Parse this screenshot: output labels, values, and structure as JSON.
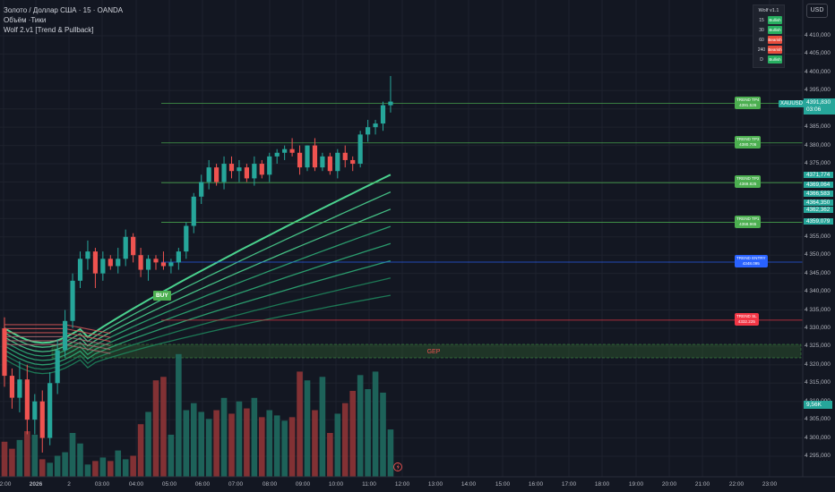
{
  "header": {
    "symbol_line": "Золото / Доллар США · 15 · OANDA",
    "volume_line": "Объём ·Тики",
    "indicator_line": "Wolf 2.v1 [Trend & Pullback]"
  },
  "currency_button": "USD",
  "wolf_panel": {
    "title": "Wolf v1.1",
    "rows": [
      {
        "tf": "15",
        "status": "Bullish",
        "color": "#27ae60"
      },
      {
        "tf": "30",
        "status": "Bullish",
        "color": "#27ae60"
      },
      {
        "tf": "60",
        "status": "Bearish",
        "color": "#e74c3c"
      },
      {
        "tf": "240",
        "status": "Bearish",
        "color": "#e74c3c"
      },
      {
        "tf": "D",
        "status": "Bullish",
        "color": "#27ae60"
      }
    ]
  },
  "levels": {
    "tp4": {
      "label": "TREND TP4",
      "value": "4391.526",
      "price": 4391.526
    },
    "tp3": {
      "label": "TREND TP3",
      "value": "4380.706",
      "price": 4380.706
    },
    "tp2": {
      "label": "TREND TP2",
      "value": "4369.825",
      "price": 4369.825
    },
    "tp1": {
      "label": "TREND TP1",
      "value": "4358.965",
      "price": 4358.965
    },
    "entry": {
      "label": "TREND ENTRY",
      "value": "4348.095",
      "price": 4348.095
    },
    "sl": {
      "label": "TREND SL",
      "value": "4332.225",
      "price": 4332.225
    }
  },
  "buy_label": "BUY",
  "gap_label": "GEP",
  "symbol_badge": "XAUUSD",
  "last_price": {
    "value": "4391,830",
    "countdown": "03:06"
  },
  "right_badges": [
    {
      "text": "4371,774",
      "price": 4371.774
    },
    {
      "text": "4369,064",
      "price": 4369.064
    },
    {
      "text": "4366,583",
      "price": 4366.583
    },
    {
      "text": "4364,350",
      "price": 4364.35
    },
    {
      "text": "4362,362",
      "price": 4362.362
    },
    {
      "text": "4359,079",
      "price": 4359.079
    }
  ],
  "volume_badge": "9,56K",
  "price_axis": [
    "4 410,000",
    "4 405,000",
    "4 400,000",
    "4 395,000",
    "4 385,000",
    "4 380,000",
    "4 375,000",
    "4 355,000",
    "4 350,000",
    "4 345,000",
    "4 340,000",
    "4 335,000",
    "4 330,000",
    "4 325,000",
    "4 320,000",
    "4 315,000",
    "4 310,000",
    "4 305,000",
    "4 300,000",
    "4 295,000"
  ],
  "time_axis": [
    "2:00",
    "2026",
    "2",
    "03:00",
    "04:00",
    "05:00",
    "06:00",
    "07:00",
    "08:00",
    "09:00",
    "10:00",
    "11:00",
    "12:00",
    "13:00",
    "14:00",
    "15:00",
    "16:00",
    "17:00",
    "18:00",
    "19:00",
    "20:00",
    "21:00",
    "22:00",
    "23:00"
  ],
  "colors": {
    "up": "#26a69a",
    "down": "#ef5350",
    "tp": "#4caf50",
    "entry": "#2962ff",
    "sl": "#f23645",
    "background": "#131722"
  },
  "chart_data": {
    "type": "candlestick",
    "symbol": "XAUUSD",
    "timeframe": "15",
    "candles": [
      {
        "o": 4330,
        "h": 4333,
        "l": 4314,
        "c": 4317
      },
      {
        "o": 4317,
        "h": 4319,
        "l": 4308,
        "c": 4311
      },
      {
        "o": 4311,
        "h": 4321,
        "l": 4307,
        "c": 4316
      },
      {
        "o": 4316,
        "h": 4320,
        "l": 4301,
        "c": 4305
      },
      {
        "o": 4305,
        "h": 4312,
        "l": 4301,
        "c": 4310
      },
      {
        "o": 4310,
        "h": 4313,
        "l": 4296,
        "c": 4300
      },
      {
        "o": 4300,
        "h": 4318,
        "l": 4298,
        "c": 4315
      },
      {
        "o": 4315,
        "h": 4327,
        "l": 4312,
        "c": 4324
      },
      {
        "o": 4324,
        "h": 4335,
        "l": 4322,
        "c": 4332
      },
      {
        "o": 4332,
        "h": 4345,
        "l": 4330,
        "c": 4343
      },
      {
        "o": 4343,
        "h": 4351,
        "l": 4341,
        "c": 4349
      },
      {
        "o": 4349,
        "h": 4354,
        "l": 4346,
        "c": 4351
      },
      {
        "o": 4351,
        "h": 4352,
        "l": 4341,
        "c": 4345
      },
      {
        "o": 4345,
        "h": 4351,
        "l": 4343,
        "c": 4349
      },
      {
        "o": 4349,
        "h": 4350,
        "l": 4346,
        "c": 4347
      },
      {
        "o": 4347,
        "h": 4352,
        "l": 4345,
        "c": 4349
      },
      {
        "o": 4349,
        "h": 4357,
        "l": 4347,
        "c": 4355
      },
      {
        "o": 4355,
        "h": 4356,
        "l": 4348,
        "c": 4350
      },
      {
        "o": 4350,
        "h": 4352,
        "l": 4344,
        "c": 4346
      },
      {
        "o": 4346,
        "h": 4350,
        "l": 4343,
        "c": 4349
      },
      {
        "o": 4349,
        "h": 4350,
        "l": 4346,
        "c": 4348
      },
      {
        "o": 4348,
        "h": 4351,
        "l": 4346,
        "c": 4347
      },
      {
        "o": 4347,
        "h": 4349,
        "l": 4345,
        "c": 4348
      },
      {
        "o": 4348,
        "h": 4352,
        "l": 4346,
        "c": 4351
      },
      {
        "o": 4351,
        "h": 4359,
        "l": 4349,
        "c": 4358
      },
      {
        "o": 4358,
        "h": 4367,
        "l": 4356,
        "c": 4366
      },
      {
        "o": 4366,
        "h": 4372,
        "l": 4364,
        "c": 4370
      },
      {
        "o": 4370,
        "h": 4376,
        "l": 4368,
        "c": 4374
      },
      {
        "o": 4374,
        "h": 4375,
        "l": 4369,
        "c": 4370
      },
      {
        "o": 4370,
        "h": 4377,
        "l": 4368,
        "c": 4375
      },
      {
        "o": 4375,
        "h": 4377,
        "l": 4371,
        "c": 4373
      },
      {
        "o": 4373,
        "h": 4376,
        "l": 4370,
        "c": 4374
      },
      {
        "o": 4374,
        "h": 4375,
        "l": 4370,
        "c": 4371
      },
      {
        "o": 4371,
        "h": 4377,
        "l": 4369,
        "c": 4375
      },
      {
        "o": 4375,
        "h": 4376,
        "l": 4371,
        "c": 4372
      },
      {
        "o": 4372,
        "h": 4378,
        "l": 4370,
        "c": 4377
      },
      {
        "o": 4377,
        "h": 4379,
        "l": 4375,
        "c": 4378
      },
      {
        "o": 4378,
        "h": 4380,
        "l": 4376,
        "c": 4379
      },
      {
        "o": 4379,
        "h": 4382,
        "l": 4377,
        "c": 4378
      },
      {
        "o": 4378,
        "h": 4380,
        "l": 4372,
        "c": 4374
      },
      {
        "o": 4374,
        "h": 4380,
        "l": 4373,
        "c": 4380
      },
      {
        "o": 4380,
        "h": 4382,
        "l": 4373,
        "c": 4374
      },
      {
        "o": 4374,
        "h": 4378,
        "l": 4373,
        "c": 4377
      },
      {
        "o": 4377,
        "h": 4378,
        "l": 4372,
        "c": 4373
      },
      {
        "o": 4373,
        "h": 4379,
        "l": 4371,
        "c": 4378
      },
      {
        "o": 4378,
        "h": 4380,
        "l": 4374,
        "c": 4376
      },
      {
        "o": 4376,
        "h": 4377,
        "l": 4373,
        "c": 4375
      },
      {
        "o": 4375,
        "h": 4384,
        "l": 4374,
        "c": 4383
      },
      {
        "o": 4383,
        "h": 4387,
        "l": 4381,
        "c": 4385
      },
      {
        "o": 4385,
        "h": 4387,
        "l": 4383,
        "c": 4386
      },
      {
        "o": 4386,
        "h": 4392,
        "l": 4384,
        "c": 4391
      },
      {
        "o": 4391,
        "h": 4399,
        "l": 4389,
        "c": 4392
      }
    ],
    "volume": [
      20,
      16,
      21,
      26,
      24,
      10,
      8,
      12,
      14,
      25,
      19,
      7,
      9,
      11,
      9,
      15,
      10,
      12,
      30,
      37,
      55,
      57,
      24,
      70,
      38,
      42,
      37,
      33,
      38,
      45,
      36,
      43,
      39,
      45,
      34,
      38,
      35,
      32,
      34,
      60,
      55,
      38,
      57,
      25,
      36,
      42,
      49,
      58,
      50,
      60,
      48,
      27
    ]
  }
}
